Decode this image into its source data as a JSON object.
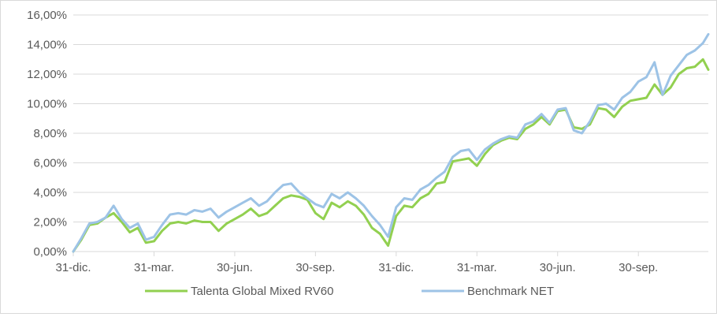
{
  "chart_data": {
    "type": "line",
    "title": "",
    "xlabel": "",
    "ylabel": "",
    "ylim": [
      0,
      16
    ],
    "y_ticks": [
      "0,00%",
      "2,00%",
      "4,00%",
      "6,00%",
      "8,00%",
      "10,00%",
      "12,00%",
      "14,00%",
      "16,00%"
    ],
    "y_tick_values": [
      0,
      2,
      4,
      6,
      8,
      10,
      12,
      14,
      16
    ],
    "x_tick_labels": [
      "31-dic.",
      "31-mar.",
      "30-jun.",
      "30-sep.",
      "31-dic.",
      "31-mar.",
      "30-jun.",
      "30-sep."
    ],
    "x_tick_positions": [
      0,
      3,
      6,
      9,
      12,
      15,
      18,
      21
    ],
    "xlim": [
      0,
      23.6
    ],
    "grid": true,
    "legend_position": "bottom",
    "series": [
      {
        "name": "Talenta Global Mixed RV60",
        "color": "#92d050",
        "x": [
          0,
          0.3,
          0.6,
          0.9,
          1.2,
          1.5,
          1.8,
          2.1,
          2.4,
          2.7,
          3.0,
          3.3,
          3.6,
          3.9,
          4.2,
          4.5,
          4.8,
          5.1,
          5.4,
          5.7,
          6.0,
          6.3,
          6.6,
          6.9,
          7.2,
          7.5,
          7.8,
          8.1,
          8.4,
          8.7,
          9.0,
          9.3,
          9.6,
          9.9,
          10.2,
          10.5,
          10.8,
          11.1,
          11.4,
          11.7,
          12.0,
          12.3,
          12.6,
          12.9,
          13.2,
          13.5,
          13.8,
          14.1,
          14.4,
          14.7,
          15.0,
          15.3,
          15.6,
          15.9,
          16.2,
          16.5,
          16.8,
          17.1,
          17.4,
          17.7,
          18.0,
          18.3,
          18.6,
          18.9,
          19.2,
          19.5,
          19.8,
          20.1,
          20.4,
          20.7,
          21.0,
          21.3,
          21.6,
          21.9,
          22.2,
          22.5,
          22.8,
          23.1,
          23.4,
          23.6
        ],
        "values": [
          0,
          0.8,
          1.8,
          1.9,
          2.3,
          2.6,
          2.0,
          1.3,
          1.6,
          0.6,
          0.7,
          1.4,
          1.9,
          2.0,
          1.9,
          2.1,
          2.0,
          2.0,
          1.4,
          1.9,
          2.2,
          2.5,
          2.9,
          2.4,
          2.6,
          3.1,
          3.6,
          3.8,
          3.7,
          3.5,
          2.6,
          2.2,
          3.3,
          3.0,
          3.4,
          3.1,
          2.5,
          1.6,
          1.2,
          0.4,
          2.4,
          3.1,
          3.0,
          3.6,
          3.9,
          4.6,
          4.7,
          6.1,
          6.2,
          6.3,
          5.8,
          6.6,
          7.2,
          7.5,
          7.7,
          7.6,
          8.3,
          8.6,
          9.1,
          8.6,
          9.5,
          9.6,
          8.4,
          8.3,
          8.6,
          9.7,
          9.6,
          9.1,
          9.8,
          10.2,
          10.3,
          10.4,
          11.3,
          10.6,
          11.1,
          12.0,
          12.4,
          12.5,
          13.0,
          12.3
        ]
      },
      {
        "name": "Benchmark NET",
        "color": "#9dc3e6",
        "x": [
          0,
          0.3,
          0.6,
          0.9,
          1.2,
          1.5,
          1.8,
          2.1,
          2.4,
          2.7,
          3.0,
          3.3,
          3.6,
          3.9,
          4.2,
          4.5,
          4.8,
          5.1,
          5.4,
          5.7,
          6.0,
          6.3,
          6.6,
          6.9,
          7.2,
          7.5,
          7.8,
          8.1,
          8.4,
          8.7,
          9.0,
          9.3,
          9.6,
          9.9,
          10.2,
          10.5,
          10.8,
          11.1,
          11.4,
          11.7,
          12.0,
          12.3,
          12.6,
          12.9,
          13.2,
          13.5,
          13.8,
          14.1,
          14.4,
          14.7,
          15.0,
          15.3,
          15.6,
          15.9,
          16.2,
          16.5,
          16.8,
          17.1,
          17.4,
          17.7,
          18.0,
          18.3,
          18.6,
          18.9,
          19.2,
          19.5,
          19.8,
          20.1,
          20.4,
          20.7,
          21.0,
          21.3,
          21.6,
          21.9,
          22.2,
          22.5,
          22.8,
          23.1,
          23.4,
          23.6
        ],
        "values": [
          0,
          0.9,
          1.9,
          2.0,
          2.3,
          3.1,
          2.2,
          1.6,
          1.9,
          0.8,
          1.0,
          1.8,
          2.5,
          2.6,
          2.5,
          2.8,
          2.7,
          2.9,
          2.3,
          2.7,
          3.0,
          3.3,
          3.6,
          3.1,
          3.4,
          4.0,
          4.5,
          4.6,
          4.0,
          3.6,
          3.2,
          3.0,
          3.9,
          3.6,
          4.0,
          3.6,
          3.1,
          2.4,
          1.8,
          1.0,
          3.0,
          3.6,
          3.5,
          4.2,
          4.5,
          5.0,
          5.4,
          6.4,
          6.8,
          6.9,
          6.2,
          6.9,
          7.3,
          7.6,
          7.8,
          7.7,
          8.6,
          8.8,
          9.3,
          8.7,
          9.6,
          9.7,
          8.2,
          8.0,
          8.8,
          9.9,
          10.0,
          9.6,
          10.4,
          10.8,
          11.5,
          11.8,
          12.8,
          10.6,
          11.9,
          12.6,
          13.3,
          13.6,
          14.1,
          14.7
        ]
      }
    ]
  }
}
